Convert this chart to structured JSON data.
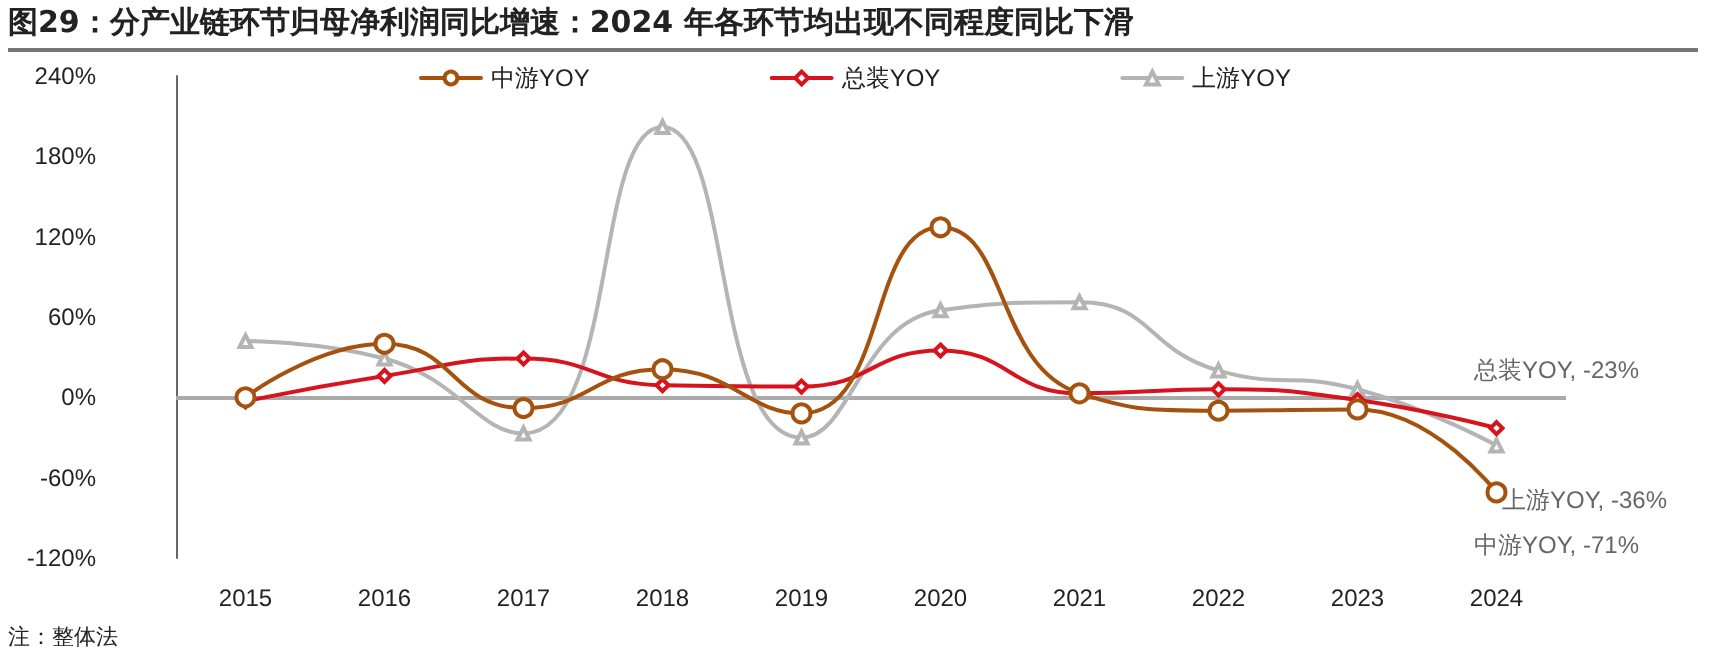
{
  "chart_data": {
    "type": "line",
    "title": "图29：分产业链环节归母净利润同比增速：2024 年各环节均出现不同程度同比下滑",
    "categories": [
      "2015",
      "2016",
      "2017",
      "2018",
      "2019",
      "2020",
      "2021",
      "2022",
      "2023",
      "2024"
    ],
    "series": [
      {
        "name": "中游YOY",
        "color": "#a5520e",
        "marker": "circle",
        "values": [
          0,
          40,
          -8,
          21,
          -12,
          127,
          3,
          -10,
          -9,
          -71
        ],
        "value_labels": [
          null,
          null,
          null,
          null,
          null,
          null,
          null,
          null,
          null,
          "中游YOY, -71%"
        ]
      },
      {
        "name": "总装YOY",
        "color": "#d7141e",
        "marker": "diamond",
        "values": [
          -3,
          16,
          29,
          9,
          8,
          35,
          3,
          6,
          -2,
          -23
        ],
        "value_labels": [
          null,
          null,
          null,
          null,
          null,
          null,
          null,
          null,
          null,
          "总装YOY, -23%"
        ]
      },
      {
        "name": "上游YOY",
        "color": "#b4b4b4",
        "marker": "triangle",
        "values": [
          42,
          29,
          -27,
          202,
          -30,
          65,
          71,
          20,
          6,
          -36
        ],
        "value_labels": [
          null,
          null,
          null,
          null,
          null,
          null,
          null,
          null,
          null,
          "上游YOY, -36%"
        ]
      }
    ],
    "ylim": [
      -120,
      240
    ],
    "yticks": [
      {
        "value": -120,
        "label": "-120%"
      },
      {
        "value": -60,
        "label": "-60%"
      },
      {
        "value": 0,
        "label": "0%"
      },
      {
        "value": 60,
        "label": "60%"
      },
      {
        "value": 120,
        "label": "120%"
      },
      {
        "value": 180,
        "label": "180%"
      },
      {
        "value": 240,
        "label": "240%"
      }
    ],
    "ref_lines": [
      {
        "axis": "y",
        "value": 0,
        "color": "#aaaaaa"
      }
    ],
    "grid": false,
    "legend": "top",
    "line_style": "solid",
    "annotations": [
      "注：整体法"
    ]
  }
}
